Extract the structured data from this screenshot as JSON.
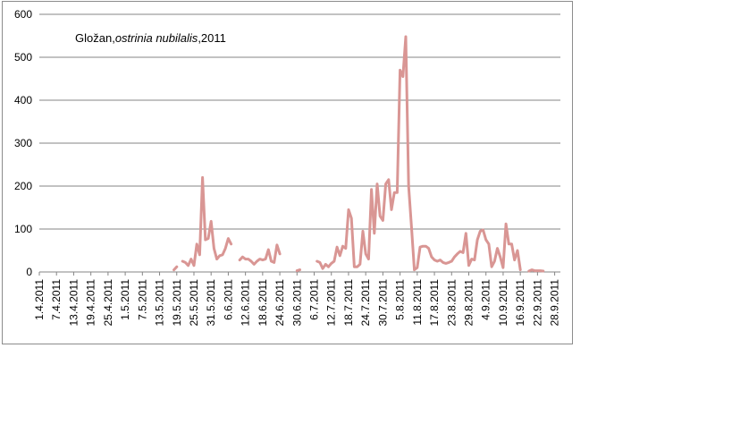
{
  "chart_data": {
    "type": "line",
    "title_parts": [
      "Gložan,",
      "ostrinia nubilalis",
      ",2011"
    ],
    "xlabel": "",
    "ylabel": "",
    "ylim": [
      0,
      600
    ],
    "yticks": [
      0,
      100,
      200,
      300,
      400,
      500,
      600
    ],
    "grid": true,
    "legend": "none",
    "line_color": "#d99694",
    "x_start": "1.4.2011",
    "x_end": "30.9.2011",
    "xtick_labels": [
      "1.4.2011",
      "7.4.2011",
      "13.4.2011",
      "19.4.2011",
      "25.4.2011",
      "1.5.2011",
      "7.5.2011",
      "13.5.2011",
      "19.5.2011",
      "25.5.2011",
      "31.5.2011",
      "6.6.2011",
      "12.6.2011",
      "18.6.2011",
      "24.6.2011",
      "30.6.2011",
      "6.7.2011",
      "12.7.2011",
      "18.7.2011",
      "24.7.2011",
      "30.7.2011",
      "5.8.2011",
      "11.8.2011",
      "17.8.2011",
      "23.8.2011",
      "29.8.2011",
      "4.9.2011",
      "10.9.2011",
      "16.9.2011",
      "22.9.2011",
      "28.9.2011"
    ],
    "series": [
      {
        "points": [
          [
            "18.5.2011",
            5
          ],
          [
            "19.5.2011",
            12
          ],
          [
            "20.5.2011",
            null
          ],
          [
            "21.5.2011",
            25
          ],
          [
            "22.5.2011",
            22
          ],
          [
            "23.5.2011",
            15
          ],
          [
            "24.5.2011",
            30
          ],
          [
            "25.5.2011",
            15
          ],
          [
            "26.5.2011",
            65
          ],
          [
            "27.5.2011",
            40
          ],
          [
            "28.5.2011",
            220
          ],
          [
            "29.5.2011",
            75
          ],
          [
            "30.5.2011",
            78
          ],
          [
            "31.5.2011",
            118
          ],
          [
            "1.6.2011",
            55
          ],
          [
            "2.6.2011",
            30
          ],
          [
            "3.6.2011",
            38
          ],
          [
            "4.6.2011",
            40
          ],
          [
            "5.6.2011",
            55
          ],
          [
            "6.6.2011",
            78
          ],
          [
            "7.6.2011",
            65
          ],
          [
            "8.6.2011",
            null
          ],
          [
            "10.6.2011",
            28
          ],
          [
            "11.6.2011",
            35
          ],
          [
            "12.6.2011",
            30
          ],
          [
            "13.6.2011",
            30
          ],
          [
            "14.6.2011",
            25
          ],
          [
            "15.6.2011",
            18
          ],
          [
            "16.6.2011",
            25
          ],
          [
            "17.6.2011",
            30
          ],
          [
            "18.6.2011",
            28
          ],
          [
            "19.6.2011",
            30
          ],
          [
            "20.6.2011",
            52
          ],
          [
            "21.6.2011",
            25
          ],
          [
            "22.6.2011",
            22
          ],
          [
            "23.6.2011",
            63
          ],
          [
            "24.6.2011",
            42
          ],
          [
            "25.6.2011",
            null
          ],
          [
            "30.6.2011",
            3
          ],
          [
            "1.7.2011",
            5
          ],
          [
            "2.7.2011",
            null
          ],
          [
            "7.7.2011",
            25
          ],
          [
            "8.7.2011",
            22
          ],
          [
            "9.7.2011",
            8
          ],
          [
            "10.7.2011",
            18
          ],
          [
            "11.7.2011",
            12
          ],
          [
            "12.7.2011",
            20
          ],
          [
            "13.7.2011",
            25
          ],
          [
            "14.7.2011",
            58
          ],
          [
            "15.7.2011",
            38
          ],
          [
            "16.7.2011",
            60
          ],
          [
            "17.7.2011",
            55
          ],
          [
            "18.7.2011",
            145
          ],
          [
            "19.7.2011",
            125
          ],
          [
            "20.7.2011",
            12
          ],
          [
            "21.7.2011",
            12
          ],
          [
            "22.7.2011",
            18
          ],
          [
            "23.7.2011",
            95
          ],
          [
            "24.7.2011",
            42
          ],
          [
            "25.7.2011",
            30
          ],
          [
            "26.7.2011",
            192
          ],
          [
            "27.7.2011",
            90
          ],
          [
            "28.7.2011",
            205
          ],
          [
            "29.7.2011",
            130
          ],
          [
            "30.7.2011",
            120
          ],
          [
            "31.7.2011",
            205
          ],
          [
            "1.8.2011",
            215
          ],
          [
            "2.8.2011",
            145
          ],
          [
            "3.8.2011",
            185
          ],
          [
            "4.8.2011",
            185
          ],
          [
            "5.8.2011",
            470
          ],
          [
            "6.8.2011",
            455
          ],
          [
            "7.8.2011",
            548
          ],
          [
            "8.8.2011",
            200
          ],
          [
            "9.8.2011",
            105
          ],
          [
            "10.8.2011",
            5
          ],
          [
            "11.8.2011",
            10
          ],
          [
            "12.8.2011",
            58
          ],
          [
            "13.8.2011",
            60
          ],
          [
            "14.8.2011",
            60
          ],
          [
            "15.8.2011",
            55
          ],
          [
            "16.8.2011",
            35
          ],
          [
            "17.8.2011",
            28
          ],
          [
            "18.8.2011",
            25
          ],
          [
            "19.8.2011",
            28
          ],
          [
            "20.8.2011",
            22
          ],
          [
            "21.8.2011",
            20
          ],
          [
            "22.8.2011",
            22
          ],
          [
            "23.8.2011",
            25
          ],
          [
            "24.8.2011",
            35
          ],
          [
            "25.8.2011",
            42
          ],
          [
            "26.8.2011",
            48
          ],
          [
            "27.8.2011",
            45
          ],
          [
            "28.8.2011",
            90
          ],
          [
            "29.8.2011",
            15
          ],
          [
            "30.8.2011",
            30
          ],
          [
            "31.8.2011",
            28
          ],
          [
            "1.9.2011",
            75
          ],
          [
            "2.9.2011",
            95
          ],
          [
            "3.9.2011",
            98
          ],
          [
            "4.9.2011",
            75
          ],
          [
            "5.9.2011",
            65
          ],
          [
            "6.9.2011",
            12
          ],
          [
            "7.9.2011",
            25
          ],
          [
            "8.9.2011",
            55
          ],
          [
            "9.9.2011",
            35
          ],
          [
            "10.9.2011",
            10
          ],
          [
            "11.9.2011",
            112
          ],
          [
            "12.9.2011",
            65
          ],
          [
            "13.9.2011",
            65
          ],
          [
            "14.9.2011",
            28
          ],
          [
            "15.9.2011",
            50
          ],
          [
            "16.9.2011",
            5
          ],
          [
            "17.9.2011",
            null
          ],
          [
            "19.9.2011",
            2
          ],
          [
            "20.9.2011",
            5
          ],
          [
            "21.9.2011",
            3
          ],
          [
            "22.9.2011",
            3
          ],
          [
            "23.9.2011",
            3
          ],
          [
            "24.9.2011",
            2
          ]
        ]
      }
    ]
  }
}
